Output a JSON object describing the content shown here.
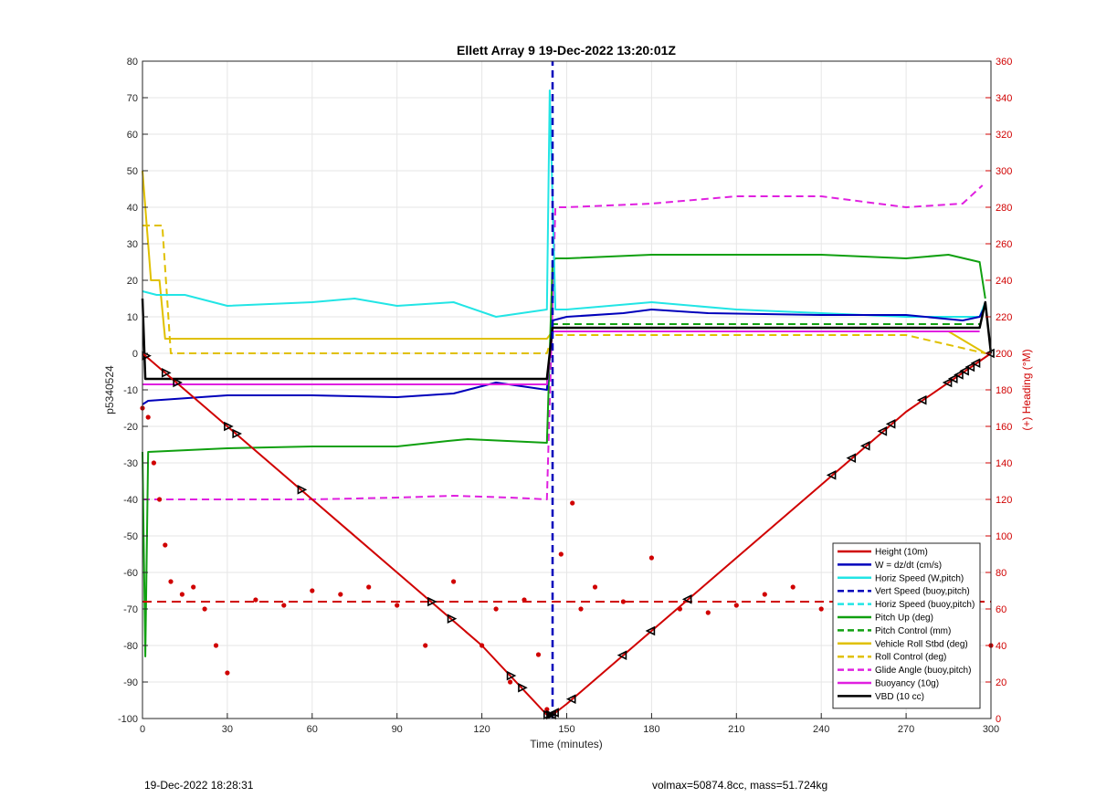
{
  "footer": {
    "timestamp": "19-Dec-2022 18:28:31",
    "info": "volmax=50874.8cc, mass=51.724kg"
  },
  "chart_data": {
    "type": "line",
    "title": "Ellett Array 9 19-Dec-2022 13:20:01Z",
    "xlabel": "Time (minutes)",
    "ylabel": "p5340524",
    "y2label": "(+) Heading (°M)",
    "xlim": [
      0,
      300
    ],
    "ylim": [
      -100,
      80
    ],
    "y2lim": [
      0,
      360
    ],
    "xticks": [
      "0",
      "30",
      "60",
      "90",
      "120",
      "150",
      "180",
      "210",
      "240",
      "270",
      "300"
    ],
    "yticks": [
      "-100",
      "-90",
      "-80",
      "-70",
      "-60",
      "-50",
      "-40",
      "-30",
      "-20",
      "-10",
      "0",
      "10",
      "20",
      "30",
      "40",
      "50",
      "60",
      "70",
      "80"
    ],
    "y2ticks": [
      "0",
      "20",
      "40",
      "60",
      "80",
      "100",
      "120",
      "140",
      "160",
      "180",
      "200",
      "220",
      "240",
      "260",
      "280",
      "300",
      "320",
      "340",
      "360"
    ],
    "grid": true,
    "legend_position": "bottom-right",
    "colors": {
      "height": "#d00000",
      "w": "#0000bb",
      "horiz": "#22e5e5",
      "pitch": "#10a010",
      "roll": "#e0c000",
      "glide": "#e020e0",
      "buoy": "#e020e0",
      "vbd": "#000000",
      "heading": "#d00000"
    },
    "legend": [
      {
        "label": "Height (10m)",
        "color": "#d00000",
        "style": "solid"
      },
      {
        "label": "W = dz/dt (cm/s)",
        "color": "#0000bb",
        "style": "solid"
      },
      {
        "label": "Horiz Speed (W,pitch)",
        "color": "#22e5e5",
        "style": "solid"
      },
      {
        "label": "Vert Speed (buoy,pitch)",
        "color": "#0000bb",
        "style": "dashed"
      },
      {
        "label": "Horiz Speed (buoy,pitch)",
        "color": "#22e5e5",
        "style": "dashed"
      },
      {
        "label": "Pitch Up (deg)",
        "color": "#10a010",
        "style": "solid"
      },
      {
        "label": "Pitch Control (mm)",
        "color": "#10a010",
        "style": "dashed"
      },
      {
        "label": "Vehicle Roll Stbd (deg)",
        "color": "#e0c000",
        "style": "solid"
      },
      {
        "label": "Roll Control (deg)",
        "color": "#e0c000",
        "style": "dashed"
      },
      {
        "label": "Glide Angle (buoy,pitch)",
        "color": "#e020e0",
        "style": "dashed"
      },
      {
        "label": "Buoyancy (10g)",
        "color": "#e020e0",
        "style": "solid"
      },
      {
        "label": "VBD (10 cc)",
        "color": "#000000",
        "style": "solid"
      }
    ],
    "series": [
      {
        "key": "height",
        "x": [
          0,
          30,
          60,
          90,
          120,
          143,
          145,
          150,
          180,
          210,
          240,
          270,
          300
        ],
        "y": [
          0,
          -20,
          -40,
          -60,
          -80,
          -99,
          -99,
          -96,
          -76,
          -56,
          -36,
          -16,
          0
        ]
      },
      {
        "key": "w",
        "x": [
          0,
          2,
          30,
          60,
          90,
          110,
          125,
          143,
          145,
          150,
          170,
          180,
          200,
          240,
          270,
          290,
          296,
          298
        ],
        "y": [
          -14,
          -13,
          -11.5,
          -11.5,
          -12,
          -11,
          -8,
          -10,
          9,
          10,
          11,
          12,
          11,
          10.5,
          10.5,
          9,
          10,
          13
        ]
      },
      {
        "key": "horiz",
        "x": [
          0,
          5,
          15,
          30,
          60,
          75,
          90,
          110,
          125,
          143,
          144,
          146,
          150,
          180,
          210,
          240,
          270,
          290,
          296,
          298
        ],
        "y": [
          17,
          16,
          16,
          13,
          14,
          15,
          13,
          14,
          10,
          12,
          72,
          12,
          12,
          14,
          12,
          11,
          10,
          10,
          10,
          14
        ]
      },
      {
        "key": "pitch",
        "x": [
          0,
          1,
          2,
          30,
          60,
          90,
          108,
          115,
          143,
          145,
          146,
          150,
          180,
          210,
          240,
          270,
          285,
          296,
          298
        ],
        "y": [
          -27,
          -83,
          -27,
          -26,
          -25.5,
          -25.5,
          -24,
          -23.5,
          -24.5,
          25,
          26,
          26,
          27,
          27,
          27,
          26,
          27,
          25,
          15
        ]
      },
      {
        "key": "pitch_ctrl",
        "x": [
          0,
          143,
          145,
          296
        ],
        "y": [
          -8.5,
          -8.5,
          8,
          8
        ]
      },
      {
        "key": "roll",
        "x": [
          0,
          3,
          6,
          8,
          10,
          30,
          60,
          90,
          120,
          143,
          145,
          150,
          180,
          210,
          240,
          270,
          285,
          298
        ],
        "y": [
          50,
          20,
          20,
          4,
          4,
          4,
          4,
          4,
          4,
          4,
          6,
          6,
          6,
          6,
          6,
          6,
          6,
          0
        ]
      },
      {
        "key": "roll_ctrl",
        "x": [
          0,
          7,
          10,
          30,
          60,
          90,
          120,
          143,
          145,
          150,
          180,
          210,
          240,
          270,
          298
        ],
        "y": [
          35,
          35,
          0,
          0,
          0,
          0,
          0,
          0,
          5,
          5,
          5,
          5,
          5,
          5,
          0
        ]
      },
      {
        "key": "glide",
        "x": [
          0,
          2,
          30,
          60,
          90,
          110,
          130,
          143,
          146,
          150,
          180,
          210,
          240,
          270,
          290,
          297
        ],
        "y": [
          -40,
          -40,
          -40,
          -40,
          -39.5,
          -39,
          -39.5,
          -40,
          40,
          40,
          41,
          43,
          43,
          40,
          41,
          46
        ]
      },
      {
        "key": "buoy",
        "x": [
          0,
          143,
          145,
          296
        ],
        "y": [
          -8.5,
          -8.5,
          6,
          6
        ]
      },
      {
        "key": "vbd",
        "x": [
          0,
          1,
          2,
          143,
          145,
          296,
          298,
          300
        ],
        "y": [
          15,
          -7,
          -7,
          -7,
          7,
          7,
          14,
          0
        ]
      },
      {
        "key": "vert_speed",
        "x": [
          145,
          145
        ],
        "y": [
          -100,
          80
        ]
      },
      {
        "key": "heading_mean",
        "y2": 64
      },
      {
        "key": "heading",
        "x": [
          0,
          2,
          4,
          6,
          8,
          10,
          14,
          18,
          22,
          26,
          30,
          40,
          50,
          60,
          70,
          80,
          90,
          100,
          110,
          120,
          125,
          130,
          135,
          140,
          143,
          148,
          152,
          155,
          160,
          170,
          180,
          190,
          200,
          210,
          220,
          230,
          240,
          250,
          260,
          270,
          280,
          290,
          300
        ],
        "y2": [
          170,
          165,
          140,
          120,
          95,
          75,
          68,
          72,
          60,
          40,
          25,
          65,
          62,
          70,
          68,
          72,
          62,
          40,
          75,
          40,
          60,
          20,
          65,
          35,
          5,
          90,
          118,
          60,
          72,
          64,
          88,
          60,
          58,
          62,
          68,
          72,
          60,
          70,
          62,
          58,
          60,
          72,
          40
        ]
      }
    ],
    "markers_height_x": [
      1,
      8,
      12,
      30,
      33,
      56,
      102,
      109,
      130,
      134,
      143,
      144,
      145,
      146,
      152,
      170,
      180,
      193,
      244,
      251,
      256,
      262,
      265,
      276,
      285,
      287,
      289,
      291,
      293,
      295,
      300
    ]
  }
}
